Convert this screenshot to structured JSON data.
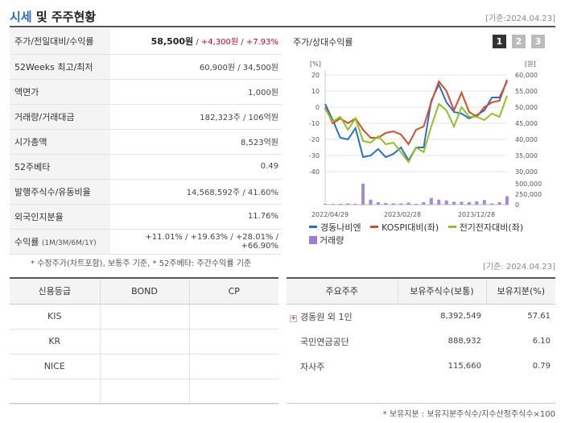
{
  "header": {
    "title_main": "시세",
    "title_rest": " 및 주주현황",
    "base_date": "[기준:2024.04.23]"
  },
  "info_rows": [
    {
      "label": "주가/전일대비/수익률",
      "price": "58,500원",
      "change": "+4,300원",
      "rate": "+7.93%"
    },
    {
      "label": "52Weeks 최고/최저",
      "value": "60,900원 / 34,500원"
    },
    {
      "label": "액면가",
      "value": "1,000원"
    },
    {
      "label": "거래량/거래대금",
      "value": "182,323주 / 106억원"
    },
    {
      "label": "시가총액",
      "value": "8,523억원"
    },
    {
      "label": "52주베타",
      "value": "0.49"
    },
    {
      "label": "발행주식수/유동비율",
      "value": "14,568,592주 / 41.60%"
    },
    {
      "label": "외국인지분율",
      "value": "11.76%"
    },
    {
      "label": "수익률",
      "label_sub": "(1M/3M/6M/1Y)",
      "r1": "+11.01%",
      "r2": "+19.63%",
      "r3": "+28.01%",
      "r4": "+66.90%"
    }
  ],
  "note1": "* 수정주가(차트포함), 보통주 기준, * 52주베타: 주간수익률 기준",
  "chart_panel": {
    "title": "주가/상대수익률",
    "pages": [
      "1",
      "2",
      "3"
    ],
    "unit_left": "[%]",
    "unit_right": "[원]",
    "legend": [
      "경동나비엔",
      "KOSPI대비(좌)",
      "전기전자대비(좌)",
      "거래량"
    ]
  },
  "chart_data": {
    "type": "line",
    "x_ticks": [
      "2022/04/29",
      "2023/02/28",
      "2023/12/28"
    ],
    "y_left": {
      "ticks": [
        20,
        10,
        0,
        -10,
        -20,
        -30,
        -40
      ],
      "range": [
        -40,
        20
      ]
    },
    "y_right": {
      "ticks": [
        "60,000",
        "55,000",
        "50,000",
        "45,000",
        "40,000",
        "35,000",
        "30,000"
      ],
      "range": [
        30000,
        60000
      ]
    },
    "volume_axis": {
      "ticks": [
        "500,000",
        "250,000",
        "0"
      ],
      "range": [
        0,
        500000
      ]
    },
    "series": [
      {
        "name": "경동나비엔",
        "color": "#2a6dd3",
        "values": [
          2,
          -8,
          -19,
          -20,
          -13,
          -31,
          -30,
          -26,
          -31,
          -29,
          -25,
          -33,
          -25,
          -25,
          4,
          14,
          3,
          -3,
          -4,
          -7,
          -5,
          -2,
          6,
          6,
          16
        ]
      },
      {
        "name": "KOSPI대비(좌)",
        "color": "#d94b2b",
        "values": [
          0,
          -10,
          -7,
          -10,
          -7,
          -14,
          -19,
          -19,
          -16,
          -15,
          -17,
          -23,
          -14,
          -12,
          3,
          16,
          10,
          -2,
          9,
          -3,
          -6,
          0,
          3,
          4,
          17
        ]
      },
      {
        "name": "전기전자대비(좌)",
        "color": "#8fc31f",
        "values": [
          -1,
          -9,
          -6,
          -14,
          -7,
          -21,
          -22,
          -18,
          -23,
          -22,
          -28,
          -34,
          -25,
          -28,
          -12,
          2,
          -2,
          -12,
          0,
          -6,
          -6,
          -8,
          -4,
          -6,
          7
        ]
      }
    ],
    "volume": [
      20000,
      15000,
      20000,
      30000,
      20000,
      500000,
      120000,
      60000,
      40000,
      30000,
      30000,
      50000,
      20000,
      60000,
      160000,
      120000,
      100000,
      70000,
      70000,
      60000,
      80000,
      110000,
      30000,
      60000,
      200000
    ]
  },
  "base_date2": "[기준: 2024.04.23]",
  "credit": {
    "headers": [
      "신용등급",
      "BOND",
      "CP"
    ],
    "rows": [
      [
        "KIS",
        "",
        ""
      ],
      [
        "KR",
        "",
        ""
      ],
      [
        "NICE",
        "",
        ""
      ],
      [
        "",
        "",
        ""
      ]
    ]
  },
  "holders": {
    "headers": [
      "주요주주",
      "보유주식수(보통)",
      "보유지분(%)"
    ],
    "rows": [
      {
        "name": "경동원 외 1인",
        "shares": "8,392,549",
        "pct": "57.61",
        "expand": "+"
      },
      {
        "name": "국민연금공단",
        "shares": "888,932",
        "pct": "6.10"
      },
      {
        "name": "자사주",
        "shares": "115,660",
        "pct": "0.79"
      }
    ]
  },
  "note2": "* 보유지분 : 보유지분주식수/지수산정주식수×100"
}
